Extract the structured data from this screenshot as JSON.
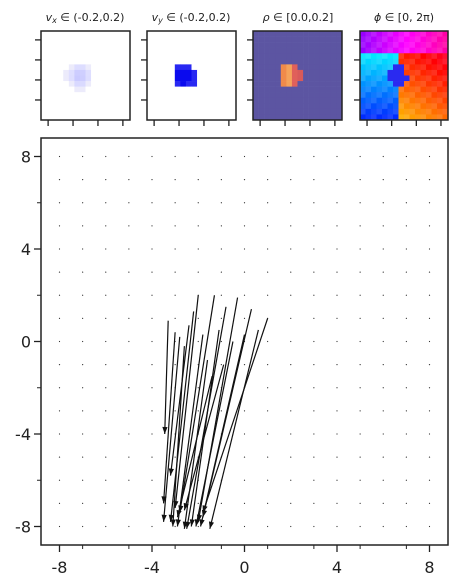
{
  "chart_data": [
    {
      "type": "heatmap",
      "title": "v_x ∈ (-0.2,0.2)",
      "title_parts": {
        "symbol": "v",
        "sub": "x",
        "range": " ∈ (-0.2,0.2)"
      },
      "xlabel": "",
      "ylabel": "",
      "colormap": "bwr",
      "value_range": [
        -0.2,
        0.2
      ],
      "description": "mostly neutral field with a small pale-blue blob slightly left of centre"
    },
    {
      "type": "heatmap",
      "title": "v_y ∈ (-0.2,0.2)",
      "title_parts": {
        "symbol": "v",
        "sub": "y",
        "range": " ∈ (-0.2,0.2)"
      },
      "xlabel": "",
      "ylabel": "",
      "colormap": "bwr",
      "value_range": [
        -0.2,
        0.2
      ],
      "description": "neutral field with a saturated blue blob slightly left of centre"
    },
    {
      "type": "heatmap",
      "title": "ρ ∈ [0.0,0.2]",
      "title_parts": {
        "symbol": "ρ",
        "sub": "",
        "range": " ∈ [0.0,0.2]"
      },
      "xlabel": "",
      "ylabel": "",
      "colormap": "plasma-like",
      "value_range": [
        0.0,
        0.2
      ],
      "description": "uniform dark slate-blue background with a small warm orange/red blob slightly left of centre"
    },
    {
      "type": "heatmap",
      "title": "ϕ ∈ [0, 2π)",
      "title_parts": {
        "symbol": "ϕ",
        "sub": "",
        "range": " ∈ [0, 2π)"
      },
      "xlabel": "",
      "ylabel": "",
      "colormap": "hsv",
      "value_range": [
        0,
        6.2832
      ],
      "description": "phase field: magenta top, cyan/blue left, orange/red right, blue blob at centre"
    },
    {
      "type": "scatter",
      "subtype": "quiver",
      "title": "",
      "xlabel": "",
      "ylabel": "",
      "xlim": [
        -8.8,
        8.8
      ],
      "ylim": [
        -8.8,
        8.8
      ],
      "xticks": [
        "-8",
        "-4",
        "0",
        "4",
        "8"
      ],
      "yticks": [
        "-8",
        "-4",
        "0",
        "4",
        "8"
      ],
      "grid_step": 1,
      "grid_x_range": [
        -8,
        8
      ],
      "grid_y_range": [
        -8,
        8
      ],
      "arrows": [
        {
          "x": -3.3,
          "y": 0.9,
          "x2": -3.45,
          "y2": -4.0
        },
        {
          "x": -3.0,
          "y": 0.4,
          "x2": -3.5,
          "y2": -7.0
        },
        {
          "x": -2.8,
          "y": 0.2,
          "x2": -3.5,
          "y2": -7.8
        },
        {
          "x": -2.6,
          "y": -0.2,
          "x2": -3.1,
          "y2": -8.0
        },
        {
          "x": -2.4,
          "y": 0.7,
          "x2": -3.2,
          "y2": -5.8
        },
        {
          "x": -2.2,
          "y": 1.3,
          "x2": -3.2,
          "y2": -7.8
        },
        {
          "x": -2.0,
          "y": 2.0,
          "x2": -3.0,
          "y2": -7.2
        },
        {
          "x": -1.8,
          "y": 0.3,
          "x2": -2.9,
          "y2": -8.0
        },
        {
          "x": -1.6,
          "y": -0.8,
          "x2": -2.6,
          "y2": -8.1
        },
        {
          "x": -1.3,
          "y": 2.0,
          "x2": -2.8,
          "y2": -7.4
        },
        {
          "x": -1.1,
          "y": 0.5,
          "x2": -2.3,
          "y2": -8.0
        },
        {
          "x": -0.8,
          "y": 1.5,
          "x2": -2.5,
          "y2": -8.1
        },
        {
          "x": -0.5,
          "y": 0.0,
          "x2": -2.1,
          "y2": -8.0
        },
        {
          "x": -0.3,
          "y": 1.9,
          "x2": -2.0,
          "y2": -7.8
        },
        {
          "x": 0.0,
          "y": 0.3,
          "x2": -1.9,
          "y2": -8.0
        },
        {
          "x": 0.3,
          "y": 1.4,
          "x2": -1.8,
          "y2": -7.6
        },
        {
          "x": 0.6,
          "y": 0.5,
          "x2": -1.5,
          "y2": -8.1
        },
        {
          "x": 1.0,
          "y": 1.0,
          "x2": -1.8,
          "y2": -7.4
        },
        {
          "x": -1.4,
          "y": -1.5,
          "x2": -2.9,
          "y2": -7.6
        },
        {
          "x": -0.9,
          "y": -1.0,
          "x2": -2.6,
          "y2": -7.3
        }
      ]
    }
  ]
}
